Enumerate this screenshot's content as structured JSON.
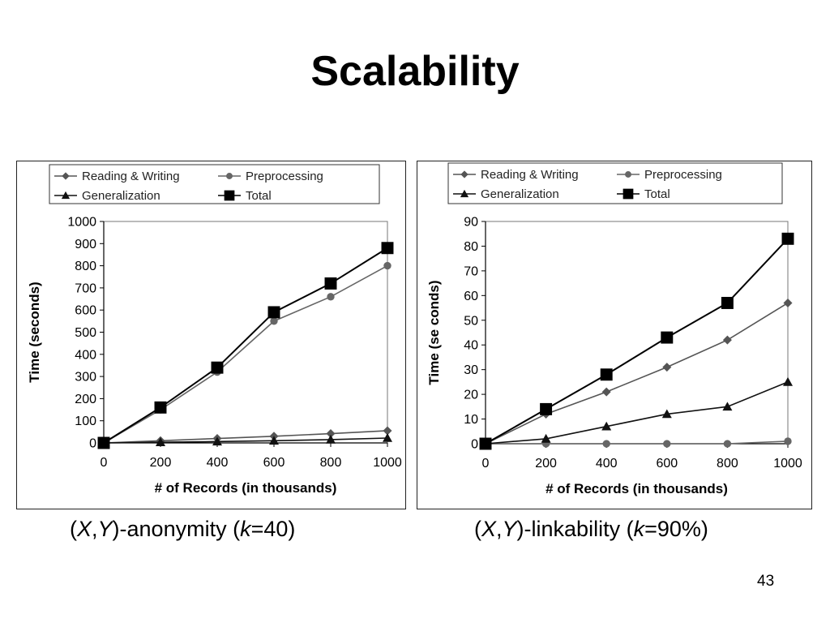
{
  "slide": {
    "title": "Scalability",
    "page_number": "43",
    "captions": [
      {
        "open": "(",
        "x": "X",
        "sep": ",",
        "y": "Y",
        "mid": ")-anonymity (",
        "k": "k",
        "tail": "=40)"
      },
      {
        "open": "(",
        "x": "X",
        "sep": ",",
        "y": "Y",
        "mid": ")-linkability (",
        "k": "k",
        "tail": "=90%)"
      }
    ]
  },
  "chart_data": [
    {
      "type": "line",
      "xlabel": "# of Records (in thousands)",
      "ylabel": "Time (seconds)",
      "x": [
        0,
        200,
        400,
        600,
        800,
        1000
      ],
      "xlim": [
        0,
        1000
      ],
      "ylim": [
        0,
        1000
      ],
      "xticks": [
        0,
        200,
        400,
        600,
        800,
        1000
      ],
      "yticks": [
        0,
        100,
        200,
        300,
        400,
        500,
        600,
        700,
        800,
        900,
        1000
      ],
      "legend": "top",
      "grid": false,
      "series": [
        {
          "name": "Reading & Writing",
          "marker": "diamond",
          "color": "#555555",
          "values": [
            0,
            10,
            20,
            30,
            42,
            55
          ]
        },
        {
          "name": "Preprocessing",
          "marker": "circle",
          "color": "#666666",
          "values": [
            0,
            150,
            320,
            550,
            660,
            800
          ]
        },
        {
          "name": "Generalization",
          "marker": "triangle",
          "color": "#111111",
          "values": [
            0,
            3,
            6,
            10,
            15,
            22
          ]
        },
        {
          "name": "Total",
          "marker": "square",
          "color": "#000000",
          "values": [
            0,
            160,
            340,
            590,
            720,
            880
          ]
        }
      ]
    },
    {
      "type": "line",
      "xlabel": "# of Records (in thousands)",
      "ylabel": "Time (se conds)",
      "x": [
        0,
        200,
        400,
        600,
        800,
        1000
      ],
      "xlim": [
        0,
        1000
      ],
      "ylim": [
        0,
        90
      ],
      "xticks": [
        0,
        200,
        400,
        600,
        800,
        1000
      ],
      "yticks": [
        0,
        10,
        20,
        30,
        40,
        50,
        60,
        70,
        80,
        90
      ],
      "legend": "top",
      "grid": false,
      "series": [
        {
          "name": "Reading & Writing",
          "marker": "diamond",
          "color": "#555555",
          "values": [
            0,
            12,
            21,
            31,
            42,
            57
          ]
        },
        {
          "name": "Preprocessing",
          "marker": "circle",
          "color": "#666666",
          "values": [
            0,
            0,
            0,
            0,
            0,
            1
          ]
        },
        {
          "name": "Generalization",
          "marker": "triangle",
          "color": "#111111",
          "values": [
            0,
            2,
            7,
            12,
            15,
            25
          ]
        },
        {
          "name": "Total",
          "marker": "square",
          "color": "#000000",
          "values": [
            0,
            14,
            28,
            43,
            57,
            83
          ]
        }
      ]
    }
  ]
}
